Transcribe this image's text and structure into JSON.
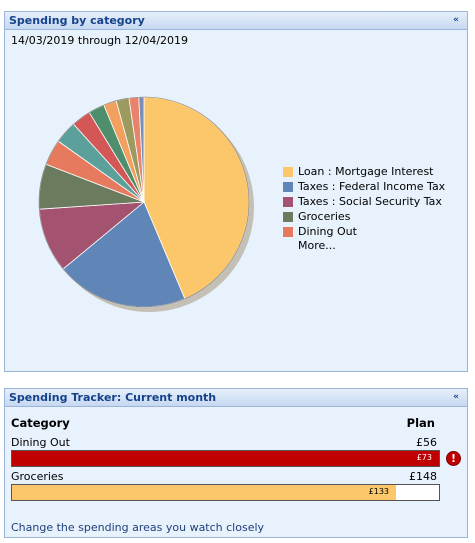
{
  "spending_panel": {
    "title": "Spending by category",
    "date_range": "14/03/2019 through 12/04/2019",
    "collapse_glyph": "«"
  },
  "chart_data": {
    "type": "pie",
    "slices": [
      {
        "label": "Loan : Mortgage Interest",
        "value": 44.0,
        "color": "#fcc76a"
      },
      {
        "label": "Taxes : Federal Income Tax",
        "value": 20.5,
        "color": "#6086b8"
      },
      {
        "label": "Taxes : Social Security Tax",
        "value": 10.0,
        "color": "#a3536f"
      },
      {
        "label": "Groceries",
        "value": 7.0,
        "color": "#6b7c5e"
      },
      {
        "label": "Dining Out",
        "value": 4.0,
        "color": "#e57a5f"
      },
      {
        "label": "",
        "value": 3.5,
        "color": "#5ba09b"
      },
      {
        "label": "",
        "value": 3.0,
        "color": "#d35757"
      },
      {
        "label": "",
        "value": 2.5,
        "color": "#4f8e6c"
      },
      {
        "label": "",
        "value": 2.0,
        "color": "#f2a05f"
      },
      {
        "label": "",
        "value": 2.0,
        "color": "#9c9a5e"
      },
      {
        "label": "",
        "value": 1.5,
        "color": "#e8826a"
      },
      {
        "label": "",
        "value": 0.8,
        "color": "#7a8fb8"
      }
    ],
    "legend": [
      {
        "label": "Loan : Mortgage Interest",
        "color": "#fcc76a"
      },
      {
        "label": "Taxes : Federal Income Tax",
        "color": "#6086b8"
      },
      {
        "label": "Taxes : Social Security Tax",
        "color": "#a3536f"
      },
      {
        "label": "Groceries",
        "color": "#6b7c5e"
      },
      {
        "label": "Dining Out",
        "color": "#e57a5f"
      }
    ],
    "legend_more": "More..."
  },
  "tracker_panel": {
    "title": "Spending Tracker: Current month",
    "collapse_glyph": "«",
    "header_category": "Category",
    "header_plan": "Plan",
    "rows": [
      {
        "category": "Dining Out",
        "plan": "£56",
        "actual": "£73",
        "spent_fraction": 1.0,
        "bar_color": "#c00000",
        "text_color": "#ffffff",
        "over_budget": true,
        "warn_glyph": "!"
      },
      {
        "category": "Groceries",
        "plan": "£148",
        "actual": "£133",
        "spent_fraction": 0.899,
        "bar_color": "#fcc76a",
        "text_color": "#000000",
        "over_budget": false
      }
    ],
    "change_link": "Change the spending areas you watch closely"
  }
}
